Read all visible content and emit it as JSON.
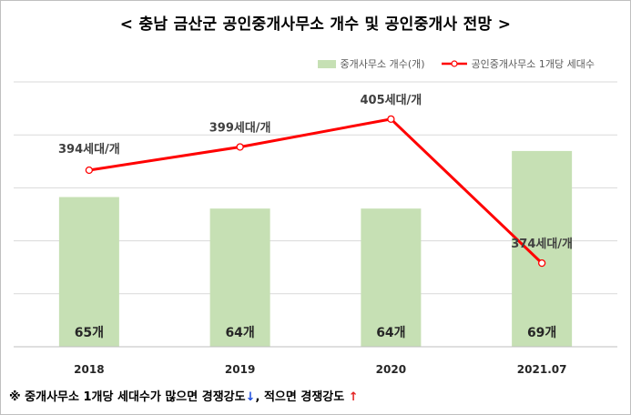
{
  "title": "< 충남 금산군 공인중개사무소 개수 및 공인중개사 전망 >",
  "legend": {
    "bar_label": "중개사무소 개수(개)",
    "line_label": "공인중개사무소 1개당 세대수"
  },
  "colors": {
    "bar": "#c6e0b4",
    "line": "#ff0000",
    "grid": "#d9d9d9"
  },
  "note": {
    "prefix": "※ 중개사무소 1개당 세대수가 많으면 경쟁강도",
    "down_arrow": "↓",
    "middle": ", 적으면 경쟁강도 ",
    "up_arrow": "↑"
  },
  "chart_data": {
    "type": "bar+line",
    "categories": [
      "2018",
      "2019",
      "2020",
      "2021.07"
    ],
    "series": [
      {
        "name": "중개사무소 개수(개)",
        "type": "bar",
        "values": [
          65,
          64,
          64,
          69
        ],
        "labels": [
          "65개",
          "64개",
          "64개",
          "69개"
        ]
      },
      {
        "name": "공인중개사무소 1개당 세대수",
        "type": "line",
        "values": [
          394,
          399,
          405,
          374
        ],
        "labels": [
          "394세대/개",
          "399세대/개",
          "405세대/개",
          "374세대/개"
        ]
      }
    ],
    "bar_ylim": [
      52,
      75
    ],
    "line_ylim": [
      356,
      413
    ],
    "grid": true,
    "legend_position": "top-right"
  }
}
